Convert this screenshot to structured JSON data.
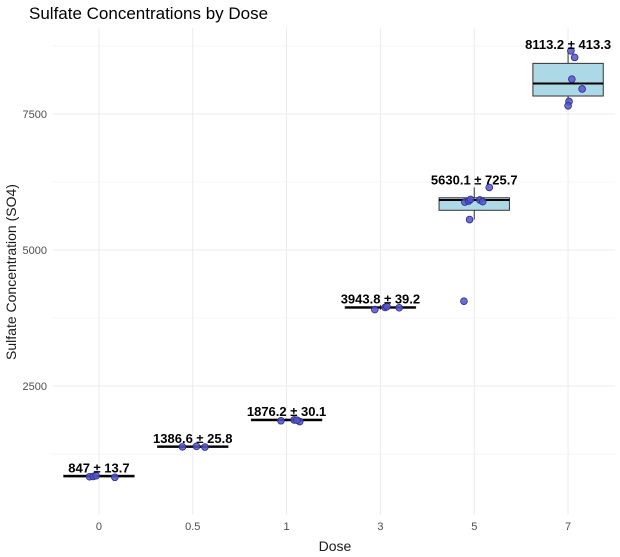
{
  "chart_data": {
    "type": "box",
    "title": "Sulfate Concentrations by Dose",
    "xlabel": "Dose",
    "ylabel": "Sulfate Concentration (SO4)",
    "categories": [
      "0",
      "0.5",
      "1",
      "3",
      "5",
      "7"
    ],
    "ylim": [
      130,
      9080
    ],
    "yticks": [
      2500,
      5000,
      7500
    ],
    "grid": true,
    "colors": {
      "box_fill": "#add8e6",
      "point_fill": "#5555c8",
      "point_stroke": "#2a2a8a",
      "grid_major": "#ebebeb",
      "grid_minor": "#f4f4f4"
    },
    "boxes": [
      {
        "category": "0",
        "q1": 830,
        "median": 845,
        "q3": 860,
        "lower": 825,
        "upper": 875
      },
      {
        "category": "0.5",
        "q1": 1372,
        "median": 1386,
        "q3": 1400,
        "lower": 1365,
        "upper": 1410
      },
      {
        "category": "1",
        "q1": 1862,
        "median": 1876,
        "q3": 1892,
        "lower": 1850,
        "upper": 1905
      },
      {
        "category": "3",
        "q1": 3930,
        "median": 3944,
        "q3": 3958,
        "lower": 3900,
        "upper": 3990
      },
      {
        "category": "5",
        "q1": 5730,
        "median": 5920,
        "q3": 5960,
        "lower": 5560,
        "upper": 6150
      },
      {
        "category": "7",
        "q1": 7830,
        "median": 8060,
        "q3": 8430,
        "lower": 7650,
        "upper": 8640
      }
    ],
    "points": [
      {
        "category": "0",
        "offset": -0.1,
        "y": 833
      },
      {
        "category": "0",
        "offset": -0.06,
        "y": 838
      },
      {
        "category": "0",
        "offset": -0.03,
        "y": 852
      },
      {
        "category": "0",
        "offset": 0.17,
        "y": 823
      },
      {
        "category": "0.5",
        "offset": -0.11,
        "y": 1382
      },
      {
        "category": "0.5",
        "offset": 0.04,
        "y": 1392
      },
      {
        "category": "0.5",
        "offset": 0.13,
        "y": 1379
      },
      {
        "category": "1",
        "offset": -0.06,
        "y": 1862
      },
      {
        "category": "1",
        "offset": 0.08,
        "y": 1877
      },
      {
        "category": "1",
        "offset": 0.14,
        "y": 1848
      },
      {
        "category": "1",
        "offset": 0.11,
        "y": 1872
      },
      {
        "category": "3",
        "offset": -0.06,
        "y": 3905
      },
      {
        "category": "3",
        "offset": 0.05,
        "y": 3944
      },
      {
        "category": "3",
        "offset": 0.07,
        "y": 3960
      },
      {
        "category": "3",
        "offset": 0.2,
        "y": 3939
      },
      {
        "category": "5",
        "offset": -0.1,
        "y": 5880
      },
      {
        "category": "5",
        "offset": -0.06,
        "y": 5900
      },
      {
        "category": "5",
        "offset": -0.05,
        "y": 5560
      },
      {
        "category": "5",
        "offset": -0.04,
        "y": 5930
      },
      {
        "category": "5",
        "offset": 0.06,
        "y": 5920
      },
      {
        "category": "5",
        "offset": 0.09,
        "y": 5890
      },
      {
        "category": "5",
        "offset": 0.16,
        "y": 6150
      },
      {
        "category": "5",
        "offset": -0.11,
        "y": 4060
      },
      {
        "category": "7",
        "offset": 0.03,
        "y": 8660
      },
      {
        "category": "7",
        "offset": 0.07,
        "y": 8540
      },
      {
        "category": "7",
        "offset": 0.04,
        "y": 8140
      },
      {
        "category": "7",
        "offset": 0.15,
        "y": 7960
      },
      {
        "category": "7",
        "offset": 0.01,
        "y": 7730
      },
      {
        "category": "7",
        "offset": 0.0,
        "y": 7650
      }
    ],
    "annotations": [
      {
        "category": "0",
        "text": "847 ± 13.7",
        "y": 860
      },
      {
        "category": "0.5",
        "text": "1386.6 ± 25.8",
        "y": 1400
      },
      {
        "category": "1",
        "text": "1876.2 ± 30.1",
        "y": 1892
      },
      {
        "category": "3",
        "text": "3943.8 ± 39.2",
        "y": 3958
      },
      {
        "category": "5",
        "text": "5630.1 ± 725.7",
        "y": 6150
      },
      {
        "category": "7",
        "text": "8113.2 ± 413.3",
        "y": 8640
      }
    ]
  }
}
